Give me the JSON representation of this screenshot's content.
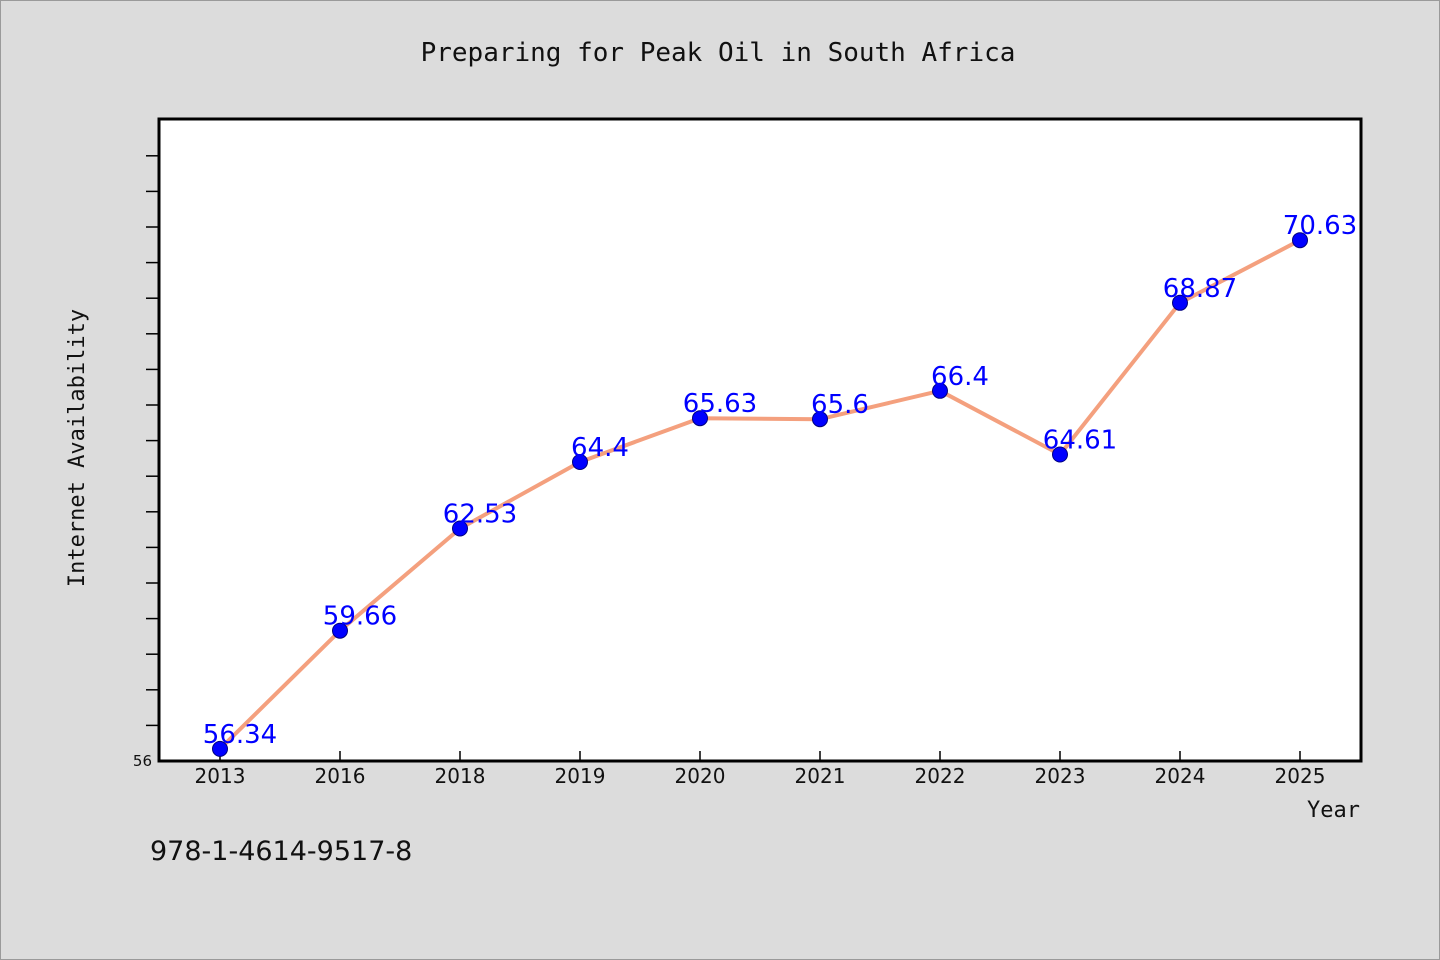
{
  "chart_data": {
    "type": "line",
    "title": "Preparing for Peak Oil in South Africa",
    "xlabel": "Year",
    "ylabel": "Internet Availability",
    "categories": [
      "2013",
      "2016",
      "2018",
      "2019",
      "2020",
      "2021",
      "2022",
      "2023",
      "2024",
      "2025"
    ],
    "series": [
      {
        "values": [
          56.34,
          59.66,
          62.53,
          64.4,
          65.63,
          65.6,
          66.4,
          64.61,
          68.87,
          70.63
        ],
        "data_labels": [
          "56.34",
          "59.66",
          "62.53",
          "64.4",
          "65.63",
          "65.6",
          "66.4",
          "64.61",
          "68.87",
          "70.63"
        ],
        "line_color": "#f4a07e",
        "marker_color": "#0000ff"
      }
    ],
    "ylim": [
      56,
      74
    ],
    "y_tick_labels": [
      "56"
    ],
    "y_minor_tick_step": 1,
    "grid": false,
    "legend": "none"
  },
  "footer": {
    "isbn": "978-1-4614-9517-8"
  },
  "colors": {
    "background": "#dcdcdc",
    "plot_background": "#ffffff",
    "data_label": "#0000ff"
  }
}
